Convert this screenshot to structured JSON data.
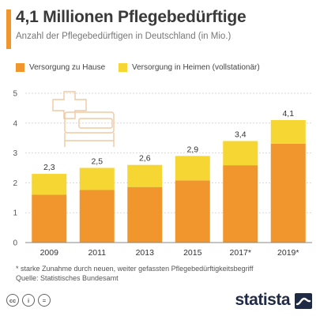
{
  "header": {
    "title": "4,1 Millionen Pflegebedürftige",
    "subtitle": "Anzahl der Pflegebedürftigen in Deutschland (in Mio.)"
  },
  "legend": {
    "items": [
      {
        "label": "Versorgung zu Hause",
        "color": "#f0962d"
      },
      {
        "label": "Versorgung in Heimen (vollstationär)",
        "color": "#f5d632"
      }
    ]
  },
  "chart_data": {
    "type": "bar",
    "stacked": true,
    "categories": [
      "2009",
      "2011",
      "2013",
      "2015",
      "2017*",
      "2019*"
    ],
    "series": [
      {
        "name": "Versorgung zu Hause",
        "color": "#f0962d",
        "values": [
          1.6,
          1.76,
          1.86,
          2.08,
          2.59,
          3.31
        ]
      },
      {
        "name": "Versorgung in Heimen (vollstationär)",
        "color": "#f5d632",
        "values": [
          0.7,
          0.74,
          0.74,
          0.82,
          0.81,
          0.79
        ]
      }
    ],
    "totals_labels": [
      "2,3",
      "2,5",
      "2,6",
      "2,9",
      "3,4",
      "4,1"
    ],
    "totals": [
      2.3,
      2.5,
      2.6,
      2.9,
      3.4,
      4.1
    ],
    "y_ticks": [
      "0",
      "1",
      "2",
      "3",
      "4",
      "5"
    ],
    "ylim": [
      0,
      5
    ],
    "grid": true,
    "legend_position": "top"
  },
  "footnote": {
    "line1": "* starke Zunahme durch neuen, weiter gefassten Pflegebedürftigkeitsbegriff",
    "line2": "Quelle: Statistisches Bundesamt"
  },
  "license_icons": [
    {
      "name": "cc-icon",
      "glyph": "cc"
    },
    {
      "name": "attribution-icon",
      "glyph": "i"
    },
    {
      "name": "no-derivatives-icon",
      "glyph": "="
    }
  ],
  "brand": {
    "name": "statista"
  }
}
